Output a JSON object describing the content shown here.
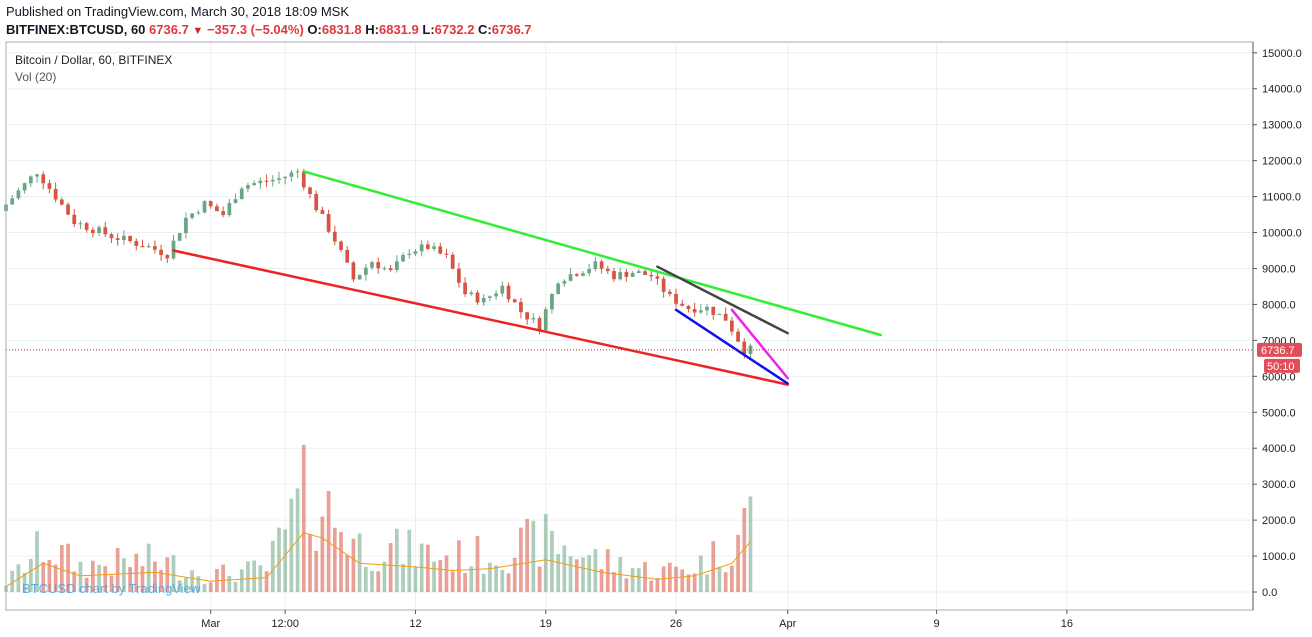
{
  "header": {
    "published": "Published on TradingView.com, March 30, 2018 18:09 MSK",
    "symbol": "BITFINEX:BTCUSD, 60",
    "last": "6736.7",
    "change": "−357.3 (−5.04%)",
    "o_label": "O:",
    "o_value": "6831.8",
    "h_label": "H:",
    "h_value": "6831.9",
    "l_label": "L:",
    "l_value": "6732.2",
    "c_label": "C:",
    "c_value": "6736.7"
  },
  "legend": {
    "title": "Bitcoin / Dollar, 60, BITFINEX",
    "volume": "Vol (20)"
  },
  "watermark": "BTCUSD chart by TradingView",
  "price_tag": {
    "value": "6736.7",
    "timer": "50:10",
    "color": "#e04e5a"
  },
  "colors": {
    "up": "#6ba583",
    "down": "#d75442",
    "green_trend": "#33ee33",
    "red_trend": "#ee2222",
    "blue_trend": "#1111ee",
    "dark_trend": "#444444",
    "magenta_trend": "#ee22ee"
  },
  "chart_data": {
    "type": "candlestick",
    "price_axis": {
      "min": -500,
      "max": 15300,
      "ticks": [
        0,
        1000,
        2000,
        3000,
        4000,
        5000,
        6000,
        7000,
        8000,
        9000,
        10000,
        11000,
        12000,
        13000,
        14000,
        15000
      ],
      "tick_labels": [
        "0.0",
        "1000.0",
        "2000.0",
        "3000.0",
        "4000.0",
        "5000.0",
        "6000.0",
        "7000.0",
        "8000.0",
        "9000.0",
        "10000.0",
        "11000.0",
        "12000.0",
        "13000.0",
        "14000.0",
        "15000.0"
      ]
    },
    "time_axis": {
      "start": "2018-02-18",
      "end": "2018-04-26",
      "ticks": [
        {
          "date": "2018-03-01",
          "label": "Mar"
        },
        {
          "date": "2018-03-05",
          "label": "12:00"
        },
        {
          "date": "2018-03-12",
          "label": "12"
        },
        {
          "date": "2018-03-19",
          "label": "19"
        },
        {
          "date": "2018-03-26",
          "label": "26"
        },
        {
          "date": "2018-04-01",
          "label": "Apr"
        },
        {
          "date": "2018-04-09",
          "label": "9"
        },
        {
          "date": "2018-04-16",
          "label": "16"
        }
      ]
    },
    "price_path": [
      {
        "date": "2018-02-18",
        "price": 10600
      },
      {
        "date": "2018-02-20",
        "price": 11700
      },
      {
        "date": "2018-02-22",
        "price": 10300
      },
      {
        "date": "2018-02-24",
        "price": 9900
      },
      {
        "date": "2018-02-26",
        "price": 9600
      },
      {
        "date": "2018-02-27",
        "price": 9400
      },
      {
        "date": "2018-02-28",
        "price": 10400
      },
      {
        "date": "2018-03-01",
        "price": 10800
      },
      {
        "date": "2018-03-02",
        "price": 10500
      },
      {
        "date": "2018-03-03",
        "price": 11300
      },
      {
        "date": "2018-03-05",
        "price": 11500
      },
      {
        "date": "2018-03-06",
        "price": 11700
      },
      {
        "date": "2018-03-07",
        "price": 10700
      },
      {
        "date": "2018-03-08",
        "price": 9800
      },
      {
        "date": "2018-03-09",
        "price": 8700
      },
      {
        "date": "2018-03-10",
        "price": 9200
      },
      {
        "date": "2018-03-11",
        "price": 8900
      },
      {
        "date": "2018-03-12",
        "price": 9500
      },
      {
        "date": "2018-03-13",
        "price": 9600
      },
      {
        "date": "2018-03-14",
        "price": 9300
      },
      {
        "date": "2018-03-15",
        "price": 8300
      },
      {
        "date": "2018-03-16",
        "price": 8100
      },
      {
        "date": "2018-03-17",
        "price": 8500
      },
      {
        "date": "2018-03-18",
        "price": 7800
      },
      {
        "date": "2018-03-19",
        "price": 7400
      },
      {
        "date": "2018-03-20",
        "price": 8700
      },
      {
        "date": "2018-03-21",
        "price": 8900
      },
      {
        "date": "2018-03-22",
        "price": 9100
      },
      {
        "date": "2018-03-23",
        "price": 8800
      },
      {
        "date": "2018-03-24",
        "price": 8900
      },
      {
        "date": "2018-03-25",
        "price": 8800
      },
      {
        "date": "2018-03-26",
        "price": 8200
      },
      {
        "date": "2018-03-27",
        "price": 7900
      },
      {
        "date": "2018-03-28",
        "price": 7900
      },
      {
        "date": "2018-03-29",
        "price": 7600
      },
      {
        "date": "2018-03-30",
        "price": 6740
      }
    ],
    "volume_path": [
      {
        "date": "2018-02-18",
        "volume": 300
      },
      {
        "date": "2018-02-20",
        "volume": 1600
      },
      {
        "date": "2018-02-22",
        "volume": 900
      },
      {
        "date": "2018-02-26",
        "volume": 1100
      },
      {
        "date": "2018-03-01",
        "volume": 600
      },
      {
        "date": "2018-03-04",
        "volume": 800
      },
      {
        "date": "2018-03-06",
        "volume": 3300
      },
      {
        "date": "2018-03-07",
        "volume": 3000
      },
      {
        "date": "2018-03-09",
        "volume": 1600
      },
      {
        "date": "2018-03-12",
        "volume": 1400
      },
      {
        "date": "2018-03-14",
        "volume": 1200
      },
      {
        "date": "2018-03-16",
        "volume": 1300
      },
      {
        "date": "2018-03-19",
        "volume": 1800
      },
      {
        "date": "2018-03-22",
        "volume": 1100
      },
      {
        "date": "2018-03-25",
        "volume": 700
      },
      {
        "date": "2018-03-27",
        "volume": 900
      },
      {
        "date": "2018-03-29",
        "volume": 1600
      },
      {
        "date": "2018-03-30",
        "volume": 2800
      }
    ],
    "trendlines": [
      {
        "name": "green",
        "color": "#33ee33",
        "from": {
          "date": "2018-03-06",
          "price": 11700
        },
        "to": {
          "date": "2018-04-06",
          "price": 7150
        }
      },
      {
        "name": "red",
        "color": "#ee2222",
        "from": {
          "date": "2018-02-27",
          "price": 9500
        },
        "to": {
          "date": "2018-04-01",
          "price": 5770
        }
      },
      {
        "name": "dark",
        "color": "#444444",
        "from": {
          "date": "2018-03-25",
          "price": 9050
        },
        "to": {
          "date": "2018-04-01",
          "price": 7200
        }
      },
      {
        "name": "blue",
        "color": "#1111ee",
        "from": {
          "date": "2018-03-26",
          "price": 7850
        },
        "to": {
          "date": "2018-04-01",
          "price": 5800
        }
      },
      {
        "name": "magenta",
        "color": "#ee22ee",
        "from": {
          "date": "2018-03-29",
          "price": 7850
        },
        "to": {
          "date": "2018-04-01",
          "price": 5950
        }
      }
    ],
    "last_price": 6736.7
  }
}
